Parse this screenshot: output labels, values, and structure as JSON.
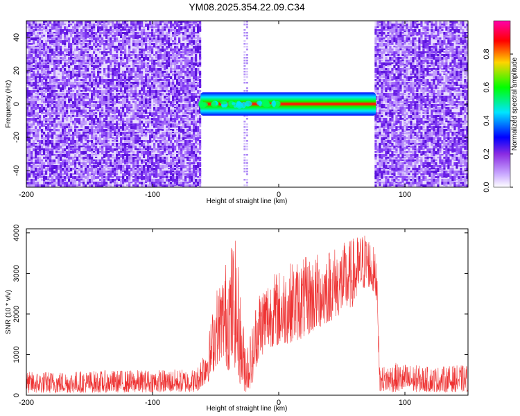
{
  "title": "YM08.2025.354.22.09.C34",
  "colors": {
    "snr_line": "#ee3333",
    "noise_purple": "#7a3cf0",
    "colormap": [
      "#ffffff",
      "#8a2be2",
      "#0000ff",
      "#00e5ff",
      "#00ff00",
      "#ffd400",
      "#ff0000",
      "#ff00aa"
    ]
  },
  "chart_data": [
    {
      "type": "heatmap",
      "name": "spectrogram",
      "xlabel": "Height of straight line (km)",
      "ylabel": "Frequency (Hz)",
      "xlim": [
        -200,
        150
      ],
      "ylim": [
        -50,
        50
      ],
      "x_ticks": [
        -200,
        -100,
        0,
        100
      ],
      "y_ticks": [
        -40,
        -20,
        0,
        20,
        40
      ],
      "colorbar": {
        "label": "Normalized spectral amplitude",
        "range": [
          0,
          1
        ],
        "ticks": [
          "0.0",
          "0.2",
          "0.4",
          "0.6",
          "0.8"
        ]
      },
      "features": {
        "noise_regions_km": [
          [
            -200,
            -62
          ],
          [
            76,
            150
          ]
        ],
        "quiet_region_km": [
          -62,
          76
        ],
        "vertical_stripes_km": [
          -27,
          -25,
          100
        ],
        "signal_band": {
          "x_start_km": -62,
          "x_end_km": 77,
          "center_hz": 0,
          "half_width_hz": 2
        }
      }
    },
    {
      "type": "line",
      "name": "snr",
      "xlabel": "Height of straight line (km)",
      "ylabel": "SNR (10 * v/v)",
      "xlim": [
        -200,
        150
      ],
      "ylim": [
        0,
        4100
      ],
      "x_ticks": [
        -200,
        -100,
        0,
        100
      ],
      "y_ticks": [
        0,
        1000,
        2000,
        3000,
        4000
      ],
      "envelope": {
        "x": [
          -200,
          -65,
          -55,
          -50,
          -45,
          -40,
          -35,
          -32,
          -30,
          -28,
          -25,
          -22,
          -20,
          -18,
          -15,
          -10,
          -5,
          0,
          10,
          20,
          30,
          40,
          50,
          60,
          65,
          70,
          75,
          78,
          80,
          90,
          100,
          120,
          150
        ],
        "low": [
          50,
          80,
          350,
          700,
          900,
          600,
          700,
          400,
          200,
          100,
          60,
          200,
          300,
          700,
          900,
          1100,
          1200,
          1200,
          1300,
          1400,
          1600,
          1800,
          2000,
          2200,
          2500,
          2700,
          2500,
          2300,
          100,
          80,
          80,
          80,
          80
        ],
        "high": [
          580,
          650,
          1600,
          2600,
          3000,
          3600,
          4000,
          3200,
          2400,
          1800,
          1400,
          1600,
          1900,
          2400,
          2700,
          2900,
          3000,
          3100,
          3300,
          3400,
          3500,
          3650,
          3750,
          3900,
          4000,
          4050,
          3700,
          3300,
          700,
          800,
          780,
          700,
          750
        ]
      }
    }
  ]
}
